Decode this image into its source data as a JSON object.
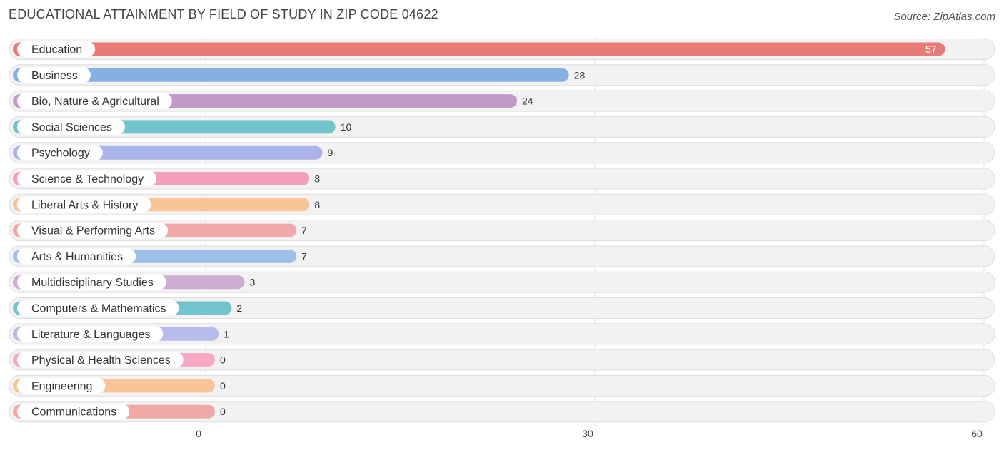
{
  "header": {
    "title": "EDUCATIONAL ATTAINMENT BY FIELD OF STUDY IN ZIP CODE 04622",
    "source": "Source: ZipAtlas.com"
  },
  "chart_data": {
    "type": "bar",
    "orientation": "horizontal",
    "title": "EDUCATIONAL ATTAINMENT BY FIELD OF STUDY IN ZIP CODE 04622",
    "categories": [
      "Education",
      "Business",
      "Bio, Nature & Agricultural",
      "Social Sciences",
      "Psychology",
      "Science & Technology",
      "Liberal Arts & History",
      "Visual & Performing Arts",
      "Arts & Humanities",
      "Multidisciplinary Studies",
      "Computers & Mathematics",
      "Literature & Languages",
      "Physical & Health Sciences",
      "Engineering",
      "Communications"
    ],
    "values": [
      57,
      28,
      24,
      10,
      9,
      8,
      8,
      7,
      7,
      3,
      2,
      1,
      0,
      0,
      0
    ],
    "value_labels": [
      "57",
      "28",
      "24",
      "10",
      "9",
      "8",
      "8",
      "7",
      "7",
      "3",
      "2",
      "1",
      "0",
      "0",
      "0"
    ],
    "colors": [
      "#e87b78",
      "#86b0e2",
      "#c09bc8",
      "#72c4cc",
      "#abb4e8",
      "#f49fbd",
      "#f8c596",
      "#f0a9a6",
      "#9dc0e8",
      "#cdaed2",
      "#72c4cc",
      "#b6bcec",
      "#f6a8c4",
      "#f8c596",
      "#f0a9a6"
    ],
    "xlim": [
      0,
      60
    ],
    "xticks": [
      0,
      30,
      60
    ],
    "xtick_labels": [
      "0",
      "30",
      "60"
    ],
    "grid": true
  }
}
